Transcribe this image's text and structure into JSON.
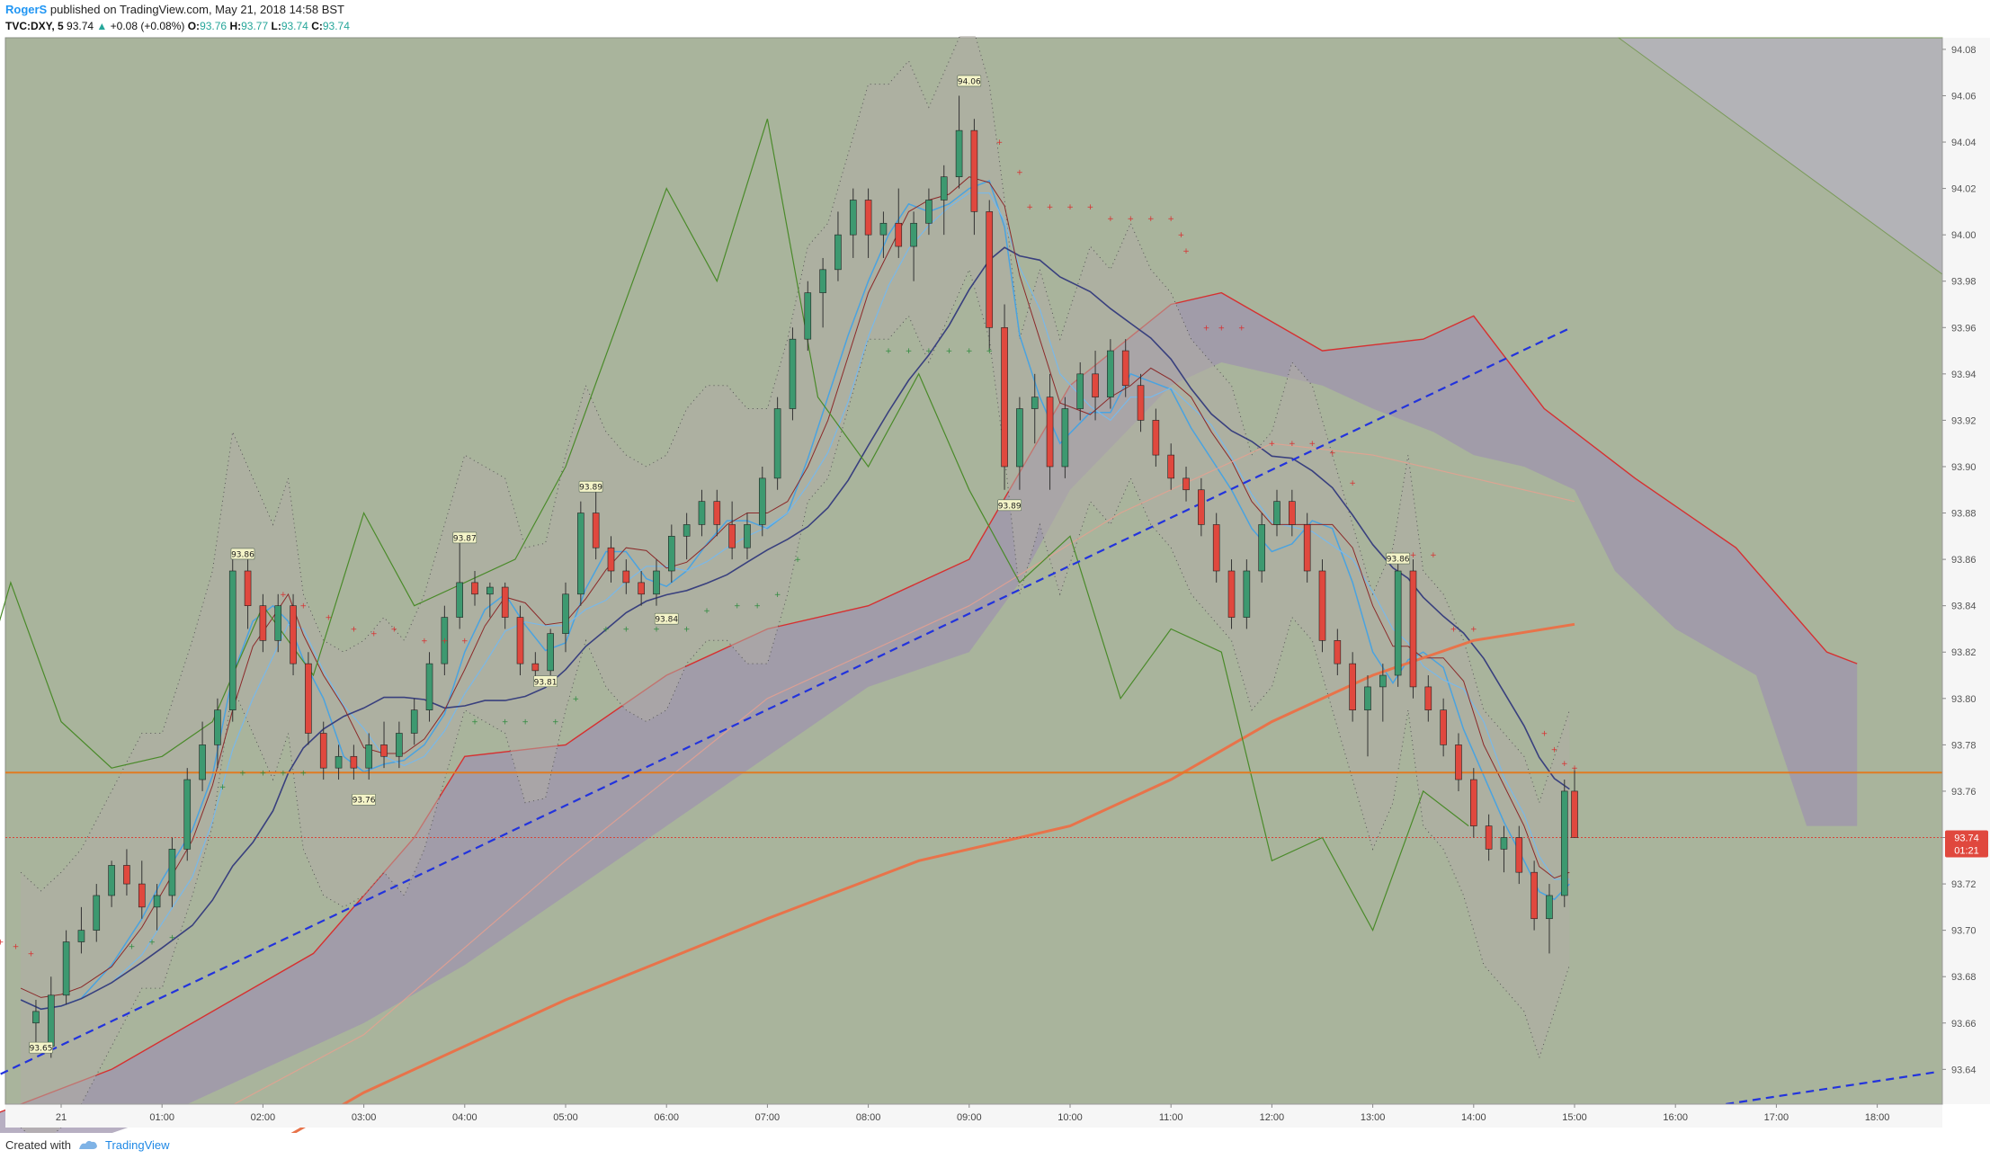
{
  "header": {
    "author": "RogerS",
    "published": "published on TradingView.com, May 21, 2018 14:58 BST",
    "symbol": "TVC:DXY, 5",
    "last": "93.74",
    "change": "+0.08 (+0.08%)",
    "o_label": "O:",
    "o_val": "93.76",
    "h_label": "H:",
    "h_val": "93.77",
    "l_label": "L:",
    "l_val": "93.74",
    "c_label": "C:",
    "c_val": "93.74"
  },
  "footer": {
    "created": "Created with",
    "brand": "TradingView"
  },
  "colors": {
    "background": "#a9b49c",
    "up": "#3d9970",
    "down": "#e0483e",
    "cloud": "#9f94ad",
    "price_line": "#e8734a",
    "horizontal": "#e07b22",
    "trend": "#2233dd"
  },
  "chart_data": {
    "type": "candlestick",
    "x_ticks": [
      "21",
      "01:00",
      "02:00",
      "03:00",
      "04:00",
      "05:00",
      "06:00",
      "07:00",
      "08:00",
      "09:00",
      "10:00",
      "11:00",
      "12:00",
      "13:00",
      "14:00",
      "15:00",
      "16:00",
      "17:00",
      "18:00"
    ],
    "y_ticks": [
      "94.08",
      "94.06",
      "94.04",
      "94.02",
      "94.00",
      "93.98",
      "93.96",
      "93.94",
      "93.92",
      "93.90",
      "93.88",
      "93.86",
      "93.84",
      "93.82",
      "93.80",
      "93.78",
      "93.76",
      "93.74",
      "93.72",
      "93.70",
      "93.68",
      "93.66",
      "93.64"
    ],
    "ylim": [
      93.625,
      94.085
    ],
    "current_price": "93.74",
    "countdown": "01:21",
    "horizontal_line": 93.768,
    "trend_line": {
      "from": [
        "00:00",
        93.645
      ],
      "to": [
        "14:58",
        93.96
      ]
    },
    "labels": [
      {
        "text": "93.65",
        "t": -0.2,
        "v": 93.649
      },
      {
        "text": "93.86",
        "t": 1.8,
        "v": 93.862
      },
      {
        "text": "93.76",
        "t": 3.0,
        "v": 93.756
      },
      {
        "text": "93.87",
        "t": 4.0,
        "v": 93.869
      },
      {
        "text": "93.81",
        "t": 4.8,
        "v": 93.807
      },
      {
        "text": "93.89",
        "t": 5.25,
        "v": 93.891
      },
      {
        "text": "93.84",
        "t": 6.0,
        "v": 93.834
      },
      {
        "text": "94.06",
        "t": 9.0,
        "v": 94.066
      },
      {
        "text": "93.89",
        "t": 9.4,
        "v": 93.883
      },
      {
        "text": "93.86",
        "t": 13.25,
        "v": 93.86
      }
    ],
    "close_path": [
      [
        -0.4,
        93.67
      ],
      [
        -0.2,
        93.662
      ],
      [
        0.0,
        93.67
      ],
      [
        0.2,
        93.68
      ],
      [
        0.5,
        93.705
      ],
      [
        0.8,
        93.73
      ],
      [
        1.0,
        93.73
      ],
      [
        1.3,
        93.77
      ],
      [
        1.5,
        93.8
      ],
      [
        1.7,
        93.86
      ],
      [
        1.9,
        93.84
      ],
      [
        2.1,
        93.82
      ],
      [
        2.25,
        93.84
      ],
      [
        2.4,
        93.79
      ],
      [
        2.6,
        93.77
      ],
      [
        2.8,
        93.765
      ],
      [
        3.0,
        93.77
      ],
      [
        3.2,
        93.78
      ],
      [
        3.4,
        93.77
      ],
      [
        3.6,
        93.79
      ],
      [
        3.8,
        93.82
      ],
      [
        4.0,
        93.85
      ],
      [
        4.2,
        93.845
      ],
      [
        4.4,
        93.84
      ],
      [
        4.6,
        93.81
      ],
      [
        4.8,
        93.812
      ],
      [
        5.0,
        93.85
      ],
      [
        5.2,
        93.88
      ],
      [
        5.4,
        93.86
      ],
      [
        5.6,
        93.85
      ],
      [
        5.8,
        93.845
      ],
      [
        6.0,
        93.85
      ],
      [
        6.2,
        93.87
      ],
      [
        6.4,
        93.88
      ],
      [
        6.6,
        93.88
      ],
      [
        6.8,
        93.87
      ],
      [
        7.0,
        93.87
      ],
      [
        7.2,
        93.9
      ],
      [
        7.4,
        93.94
      ],
      [
        7.6,
        93.95
      ],
      [
        7.8,
        93.98
      ],
      [
        8.0,
        94.01
      ],
      [
        8.2,
        94.01
      ],
      [
        8.4,
        94.02
      ],
      [
        8.6,
        94.0
      ],
      [
        8.8,
        94.02
      ],
      [
        9.0,
        94.04
      ],
      [
        9.2,
        94.01
      ],
      [
        9.35,
        93.96
      ],
      [
        9.5,
        93.9
      ],
      [
        9.7,
        93.93
      ],
      [
        9.9,
        93.9
      ],
      [
        10.2,
        93.94
      ],
      [
        10.4,
        93.93
      ],
      [
        10.6,
        93.95
      ],
      [
        10.8,
        93.93
      ],
      [
        11.0,
        93.92
      ],
      [
        11.2,
        93.9
      ],
      [
        11.4,
        93.89
      ],
      [
        11.6,
        93.88
      ],
      [
        11.8,
        93.85
      ],
      [
        12.0,
        93.86
      ],
      [
        12.2,
        93.89
      ],
      [
        12.4,
        93.88
      ],
      [
        12.6,
        93.85
      ],
      [
        12.8,
        93.82
      ],
      [
        13.0,
        93.79
      ],
      [
        13.2,
        93.81
      ],
      [
        13.35,
        93.85
      ],
      [
        13.5,
        93.8
      ],
      [
        13.7,
        93.79
      ],
      [
        13.9,
        93.77
      ],
      [
        14.1,
        93.74
      ],
      [
        14.3,
        93.73
      ],
      [
        14.5,
        93.72
      ],
      [
        14.65,
        93.7
      ],
      [
        14.8,
        93.72
      ],
      [
        14.95,
        93.74
      ]
    ],
    "candles": [
      [
        -0.25,
        93.66,
        93.67,
        93.65,
        93.665
      ],
      [
        -0.1,
        93.65,
        93.68,
        93.645,
        93.672
      ],
      [
        0.05,
        93.672,
        93.7,
        93.668,
        93.695
      ],
      [
        0.2,
        93.695,
        93.71,
        93.69,
        93.7
      ],
      [
        0.35,
        93.7,
        93.72,
        93.695,
        93.715
      ],
      [
        0.5,
        93.715,
        93.73,
        93.71,
        93.728
      ],
      [
        0.65,
        93.728,
        93.735,
        93.715,
        93.72
      ],
      [
        0.8,
        93.72,
        93.73,
        93.705,
        93.71
      ],
      [
        0.95,
        93.71,
        93.72,
        93.7,
        93.715
      ],
      [
        1.1,
        93.715,
        93.74,
        93.71,
        93.735
      ],
      [
        1.25,
        93.735,
        93.77,
        93.73,
        93.765
      ],
      [
        1.4,
        93.765,
        93.79,
        93.76,
        93.78
      ],
      [
        1.55,
        93.78,
        93.8,
        93.77,
        93.795
      ],
      [
        1.7,
        93.795,
        93.86,
        93.79,
        93.855
      ],
      [
        1.85,
        93.855,
        93.86,
        93.83,
        93.84
      ],
      [
        2.0,
        93.84,
        93.845,
        93.82,
        93.825
      ],
      [
        2.15,
        93.825,
        93.845,
        93.82,
        93.84
      ],
      [
        2.3,
        93.84,
        93.845,
        93.81,
        93.815
      ],
      [
        2.45,
        93.815,
        93.82,
        93.78,
        93.785
      ],
      [
        2.6,
        93.785,
        93.79,
        93.765,
        93.77
      ],
      [
        2.75,
        93.77,
        93.78,
        93.765,
        93.775
      ],
      [
        2.9,
        93.775,
        93.78,
        93.765,
        93.77
      ],
      [
        3.05,
        93.77,
        93.785,
        93.765,
        93.78
      ],
      [
        3.2,
        93.78,
        93.79,
        93.77,
        93.775
      ],
      [
        3.35,
        93.775,
        93.79,
        93.77,
        93.785
      ],
      [
        3.5,
        93.785,
        93.8,
        93.78,
        93.795
      ],
      [
        3.65,
        93.795,
        93.82,
        93.79,
        93.815
      ],
      [
        3.8,
        93.815,
        93.84,
        93.81,
        93.835
      ],
      [
        3.95,
        93.835,
        93.87,
        93.83,
        93.85
      ],
      [
        4.1,
        93.85,
        93.855,
        93.84,
        93.845
      ],
      [
        4.25,
        93.845,
        93.85,
        93.835,
        93.848
      ],
      [
        4.4,
        93.848,
        93.85,
        93.83,
        93.835
      ],
      [
        4.55,
        93.835,
        93.84,
        93.81,
        93.815
      ],
      [
        4.7,
        93.815,
        93.82,
        93.805,
        93.812
      ],
      [
        4.85,
        93.812,
        93.83,
        93.81,
        93.828
      ],
      [
        5.0,
        93.828,
        93.85,
        93.82,
        93.845
      ],
      [
        5.15,
        93.845,
        93.885,
        93.84,
        93.88
      ],
      [
        5.3,
        93.88,
        93.89,
        93.86,
        93.865
      ],
      [
        5.45,
        93.865,
        93.87,
        93.85,
        93.855
      ],
      [
        5.6,
        93.855,
        93.86,
        93.845,
        93.85
      ],
      [
        5.75,
        93.85,
        93.855,
        93.84,
        93.845
      ],
      [
        5.9,
        93.845,
        93.86,
        93.84,
        93.855
      ],
      [
        6.05,
        93.855,
        93.875,
        93.85,
        93.87
      ],
      [
        6.2,
        93.87,
        93.88,
        93.86,
        93.875
      ],
      [
        6.35,
        93.875,
        93.89,
        93.87,
        93.885
      ],
      [
        6.5,
        93.885,
        93.89,
        93.87,
        93.875
      ],
      [
        6.65,
        93.875,
        93.885,
        93.86,
        93.865
      ],
      [
        6.8,
        93.865,
        93.88,
        93.86,
        93.875
      ],
      [
        6.95,
        93.875,
        93.9,
        93.87,
        93.895
      ],
      [
        7.1,
        93.895,
        93.93,
        93.89,
        93.925
      ],
      [
        7.25,
        93.925,
        93.96,
        93.92,
        93.955
      ],
      [
        7.4,
        93.955,
        93.98,
        93.95,
        93.975
      ],
      [
        7.55,
        93.975,
        93.99,
        93.96,
        93.985
      ],
      [
        7.7,
        93.985,
        94.01,
        93.98,
        94.0
      ],
      [
        7.85,
        94.0,
        94.02,
        93.99,
        94.015
      ],
      [
        8.0,
        94.015,
        94.02,
        93.99,
        94.0
      ],
      [
        8.15,
        94.0,
        94.01,
        93.99,
        94.005
      ],
      [
        8.3,
        94.005,
        94.02,
        93.99,
        93.995
      ],
      [
        8.45,
        93.995,
        94.01,
        93.98,
        94.005
      ],
      [
        8.6,
        94.005,
        94.02,
        94.0,
        94.015
      ],
      [
        8.75,
        94.015,
        94.03,
        94.0,
        94.025
      ],
      [
        8.9,
        94.025,
        94.06,
        94.02,
        94.045
      ],
      [
        9.05,
        94.045,
        94.05,
        94.0,
        94.01
      ],
      [
        9.2,
        94.01,
        94.015,
        93.95,
        93.96
      ],
      [
        9.35,
        93.96,
        93.97,
        93.89,
        93.9
      ],
      [
        9.5,
        93.9,
        93.93,
        93.89,
        93.925
      ],
      [
        9.65,
        93.925,
        93.94,
        93.91,
        93.93
      ],
      [
        9.8,
        93.93,
        93.94,
        93.89,
        93.9
      ],
      [
        9.95,
        93.9,
        93.93,
        93.895,
        93.925
      ],
      [
        10.1,
        93.925,
        93.945,
        93.92,
        93.94
      ],
      [
        10.25,
        93.94,
        93.95,
        93.92,
        93.93
      ],
      [
        10.4,
        93.93,
        93.955,
        93.925,
        93.95
      ],
      [
        10.55,
        93.95,
        93.955,
        93.93,
        93.935
      ],
      [
        10.7,
        93.935,
        93.94,
        93.915,
        93.92
      ],
      [
        10.85,
        93.92,
        93.925,
        93.9,
        93.905
      ],
      [
        11.0,
        93.905,
        93.91,
        93.89,
        93.895
      ],
      [
        11.15,
        93.895,
        93.9,
        93.885,
        93.89
      ],
      [
        11.3,
        93.89,
        93.895,
        93.87,
        93.875
      ],
      [
        11.45,
        93.875,
        93.88,
        93.85,
        93.855
      ],
      [
        11.6,
        93.855,
        93.86,
        93.83,
        93.835
      ],
      [
        11.75,
        93.835,
        93.86,
        93.83,
        93.855
      ],
      [
        11.9,
        93.855,
        93.88,
        93.85,
        93.875
      ],
      [
        12.05,
        93.875,
        93.89,
        93.87,
        93.885
      ],
      [
        12.2,
        93.885,
        93.89,
        93.87,
        93.875
      ],
      [
        12.35,
        93.875,
        93.88,
        93.85,
        93.855
      ],
      [
        12.5,
        93.855,
        93.86,
        93.82,
        93.825
      ],
      [
        12.65,
        93.825,
        93.83,
        93.81,
        93.815
      ],
      [
        12.8,
        93.815,
        93.82,
        93.79,
        93.795
      ],
      [
        12.95,
        93.795,
        93.81,
        93.775,
        93.805
      ],
      [
        13.1,
        93.805,
        93.815,
        93.79,
        93.81
      ],
      [
        13.25,
        93.81,
        93.86,
        93.805,
        93.855
      ],
      [
        13.4,
        93.855,
        93.86,
        93.8,
        93.805
      ],
      [
        13.55,
        93.805,
        93.81,
        93.79,
        93.795
      ],
      [
        13.7,
        93.795,
        93.8,
        93.775,
        93.78
      ],
      [
        13.85,
        93.78,
        93.785,
        93.76,
        93.765
      ],
      [
        14.0,
        93.765,
        93.77,
        93.74,
        93.745
      ],
      [
        14.15,
        93.745,
        93.75,
        93.73,
        93.735
      ],
      [
        14.3,
        93.735,
        93.745,
        93.725,
        93.74
      ],
      [
        14.45,
        93.74,
        93.745,
        93.72,
        93.725
      ],
      [
        14.6,
        93.725,
        93.73,
        93.7,
        93.705
      ],
      [
        14.75,
        93.705,
        93.72,
        93.69,
        93.715
      ],
      [
        14.9,
        93.715,
        93.765,
        93.71,
        93.76
      ],
      [
        15.0,
        93.76,
        93.77,
        93.74,
        93.74
      ]
    ]
  }
}
